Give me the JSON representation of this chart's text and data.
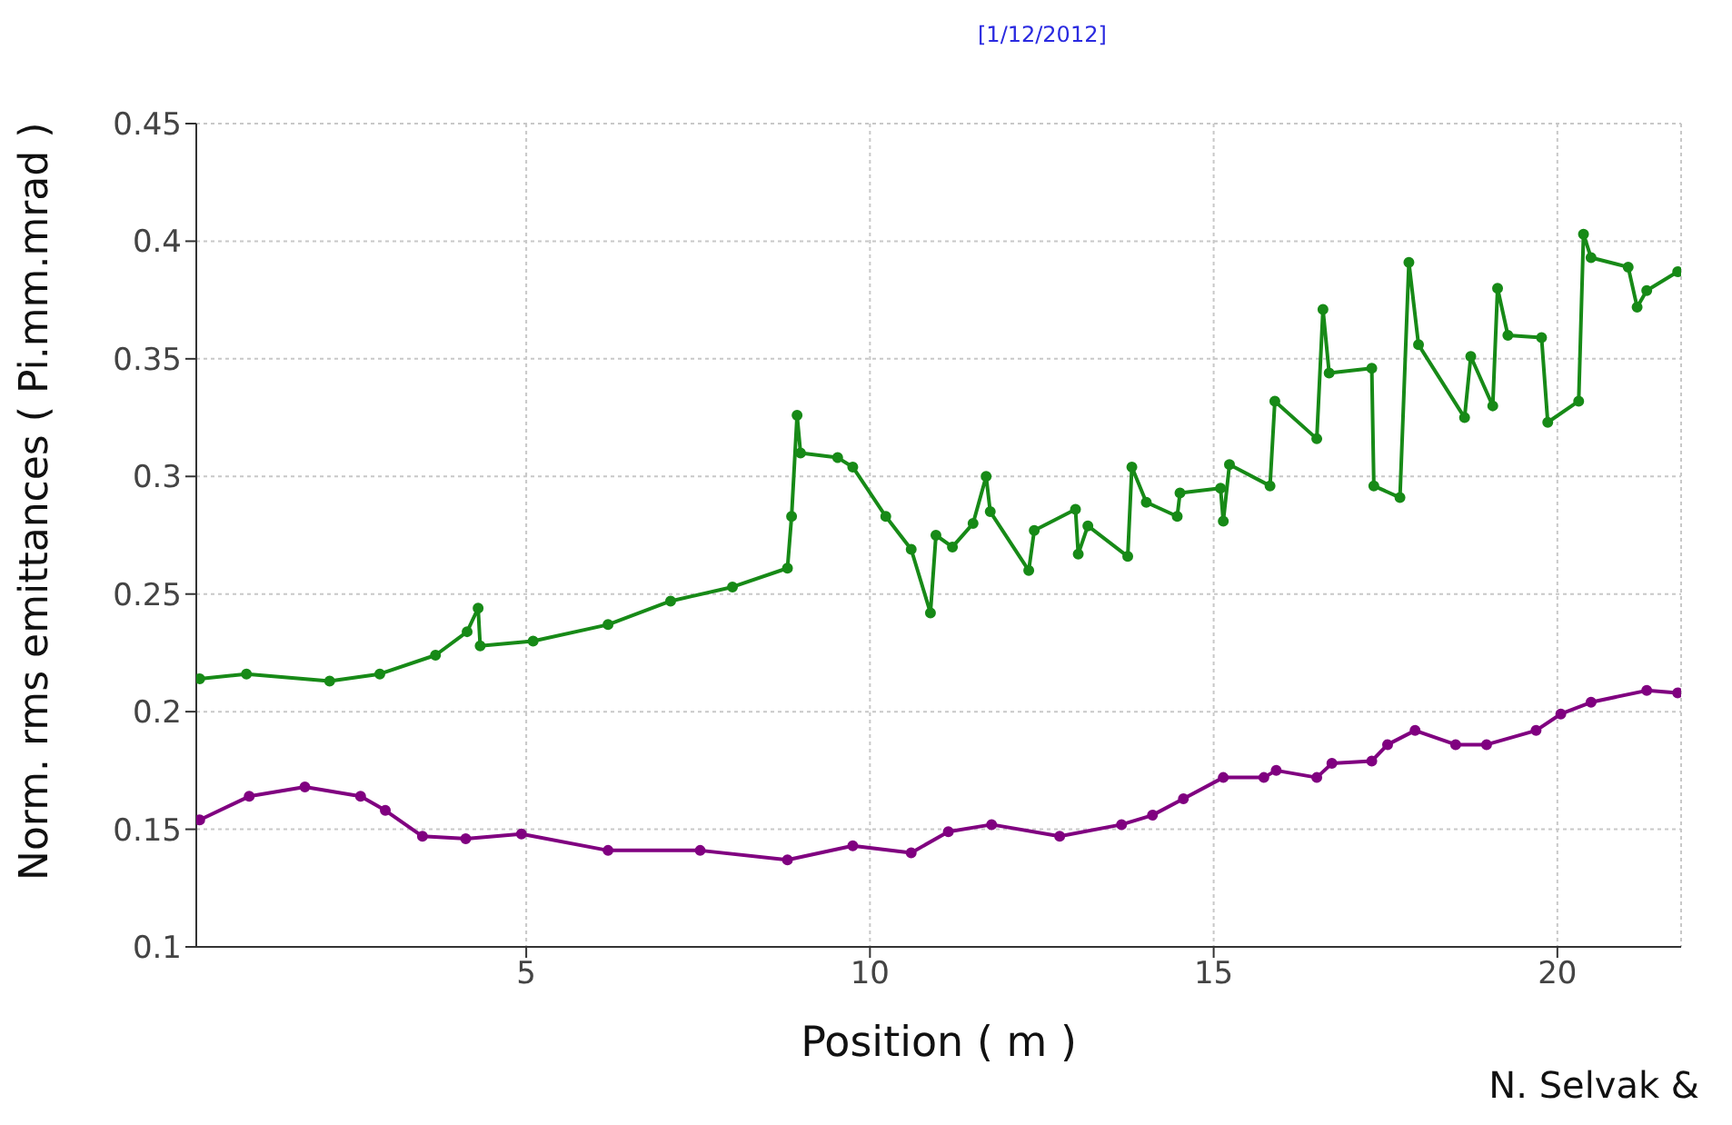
{
  "chart_data": {
    "type": "line",
    "xlabel": "Position ( m )",
    "ylabel": "Norm. rms emittances ( Pi.mm.mrad )",
    "annotations": [
      "[1/12/2012]",
      "N. Selvak &"
    ],
    "xlim": [
      0.2,
      21.8
    ],
    "xticks": [
      5,
      10,
      15,
      20
    ],
    "ylim": [
      0.1,
      0.45
    ],
    "yticks": [
      0.1,
      0.15,
      0.2,
      0.25,
      0.3,
      0.35,
      0.4,
      0.45
    ],
    "grid": true,
    "marker": "circle",
    "line_style": "solid",
    "series": [
      {
        "color": "#178a17",
        "x": [
          0.25,
          0.93,
          2.14,
          2.87,
          3.68,
          4.14,
          4.3,
          4.33,
          5.1,
          6.19,
          7.1,
          8.0,
          8.8,
          8.86,
          8.94,
          8.99,
          9.53,
          9.75,
          10.23,
          10.6,
          10.88,
          10.96,
          11.2,
          11.5,
          11.69,
          11.75,
          12.31,
          12.39,
          12.99,
          13.03,
          13.17,
          13.75,
          13.81,
          14.02,
          14.47,
          14.51,
          15.1,
          15.14,
          15.23,
          15.82,
          15.89,
          16.5,
          16.59,
          16.68,
          17.3,
          17.33,
          17.71,
          17.84,
          17.98,
          18.65,
          18.74,
          19.06,
          19.13,
          19.28,
          19.77,
          19.86,
          20.31,
          20.38,
          20.49,
          21.03,
          21.16,
          21.3,
          21.75
        ],
        "values": [
          0.214,
          0.216,
          0.213,
          0.216,
          0.224,
          0.234,
          0.244,
          0.228,
          0.23,
          0.237,
          0.247,
          0.253,
          0.261,
          0.283,
          0.326,
          0.31,
          0.308,
          0.304,
          0.283,
          0.269,
          0.242,
          0.275,
          0.27,
          0.28,
          0.3,
          0.285,
          0.26,
          0.277,
          0.286,
          0.267,
          0.279,
          0.266,
          0.304,
          0.289,
          0.283,
          0.293,
          0.295,
          0.281,
          0.305,
          0.296,
          0.332,
          0.316,
          0.371,
          0.344,
          0.346,
          0.296,
          0.291,
          0.391,
          0.356,
          0.325,
          0.351,
          0.33,
          0.38,
          0.36,
          0.359,
          0.323,
          0.332,
          0.403,
          0.393,
          0.389,
          0.372,
          0.379,
          0.387
        ]
      },
      {
        "color": "#800080",
        "x": [
          0.25,
          0.97,
          1.78,
          2.59,
          2.95,
          3.49,
          4.12,
          4.93,
          6.19,
          7.53,
          8.8,
          9.75,
          10.6,
          11.14,
          11.77,
          12.76,
          13.66,
          14.11,
          14.56,
          15.14,
          15.73,
          15.91,
          16.5,
          16.72,
          17.3,
          17.53,
          17.93,
          18.52,
          18.97,
          19.69,
          20.05,
          20.49,
          21.3,
          21.75
        ],
        "values": [
          0.154,
          0.164,
          0.168,
          0.164,
          0.158,
          0.147,
          0.146,
          0.148,
          0.141,
          0.141,
          0.137,
          0.143,
          0.14,
          0.149,
          0.152,
          0.147,
          0.152,
          0.156,
          0.163,
          0.172,
          0.172,
          0.175,
          0.172,
          0.178,
          0.179,
          0.186,
          0.192,
          0.186,
          0.186,
          0.192,
          0.199,
          0.204,
          0.209,
          0.208
        ]
      }
    ]
  }
}
